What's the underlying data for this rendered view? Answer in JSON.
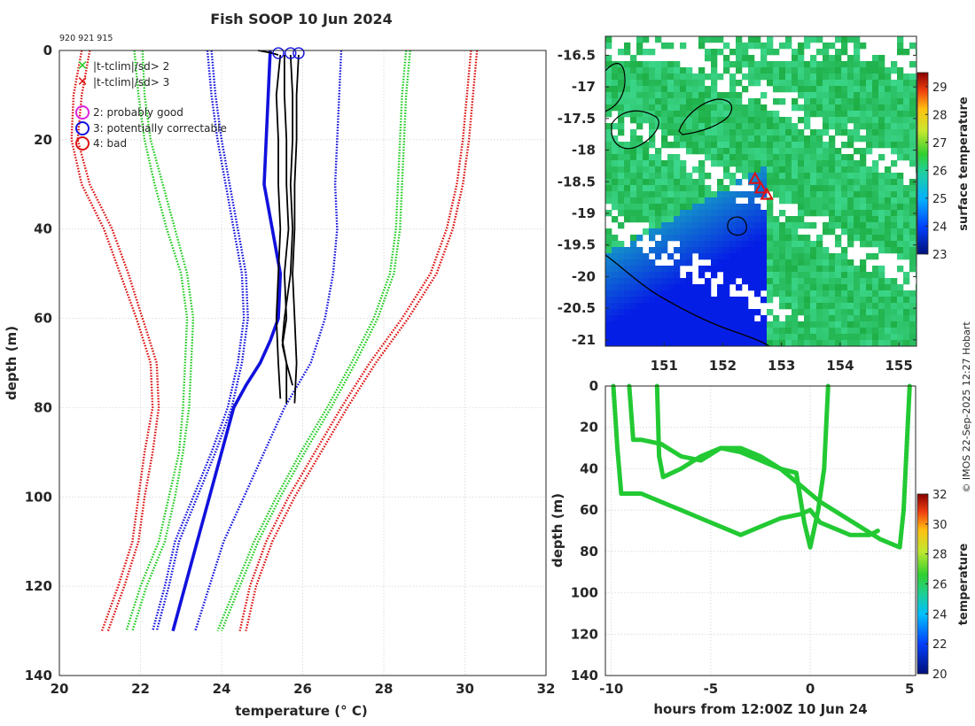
{
  "figure": {
    "title": "Fish SOOP 10 Jun 2024",
    "ids_text": "920 921 915",
    "credit": "© IMOS 22-Sep-2025 12:27 Hobart"
  },
  "chart_data": [
    {
      "type": "line",
      "panel": "profile",
      "xlabel": "temperature (° C)",
      "ylabel": "depth (m)",
      "xlim": [
        20,
        32
      ],
      "ylim": [
        140,
        0
      ],
      "xticks": [
        20,
        22,
        24,
        26,
        28,
        30,
        32
      ],
      "yticks": [
        0,
        20,
        40,
        60,
        80,
        100,
        120,
        140
      ],
      "grid": true,
      "legend": [
        {
          "label": "|t-tclim|/sd> 2",
          "marker": "x",
          "color": "#22cc22"
        },
        {
          "label": "|t-tclim|/sd> 3",
          "marker": "x",
          "color": "#dd1111"
        },
        {
          "label": "2: probably good",
          "marker": "o",
          "color": "#dd22dd"
        },
        {
          "label": "3: potentially correctable",
          "marker": "o",
          "color": "#1111dd"
        },
        {
          "label": "4: bad",
          "marker": "o",
          "color": "#dd1111"
        }
      ],
      "envelope_depth": [
        0,
        10,
        20,
        30,
        40,
        50,
        60,
        70,
        80,
        90,
        100,
        110,
        120,
        130
      ],
      "series": [
        {
          "name": "clim -3sd a",
          "color": "#dd1111",
          "style": "dotted",
          "values": [
            20.55,
            20.35,
            20.3,
            20.55,
            21.1,
            21.5,
            21.9,
            22.25,
            22.3,
            22.1,
            21.95,
            21.8,
            21.45,
            21.05
          ]
        },
        {
          "name": "clim -3sd b",
          "color": "#dd1111",
          "style": "dotted",
          "values": [
            20.75,
            20.55,
            20.45,
            20.75,
            21.3,
            21.7,
            22.05,
            22.4,
            22.45,
            22.3,
            22.1,
            21.95,
            21.6,
            21.2
          ]
        },
        {
          "name": "clim -2sd a",
          "color": "#22cc22",
          "style": "dotted",
          "values": [
            21.85,
            21.95,
            22.1,
            22.35,
            22.65,
            23.0,
            23.15,
            23.1,
            23.05,
            22.95,
            22.7,
            22.45,
            22.0,
            21.65
          ]
        },
        {
          "name": "clim -2sd b",
          "color": "#22cc22",
          "style": "dotted",
          "values": [
            22.05,
            22.1,
            22.25,
            22.55,
            22.85,
            23.15,
            23.3,
            23.25,
            23.2,
            23.05,
            22.85,
            22.6,
            22.15,
            21.8
          ]
        },
        {
          "name": "clim mean -sd",
          "color": "#1111dd",
          "style": "dotted",
          "values": [
            23.65,
            23.75,
            23.9,
            24.1,
            24.3,
            24.5,
            24.55,
            24.4,
            24.15,
            23.75,
            23.3,
            22.85,
            22.6,
            22.3
          ]
        },
        {
          "name": "clim mean -sd b",
          "color": "#1111dd",
          "style": "dotted",
          "values": [
            23.75,
            23.85,
            24.0,
            24.2,
            24.4,
            24.6,
            24.65,
            24.5,
            24.25,
            23.85,
            23.4,
            22.95,
            22.7,
            22.4
          ]
        },
        {
          "name": "clim mean +sd",
          "color": "#1111dd",
          "style": "dotted",
          "values": [
            26.95,
            26.9,
            26.85,
            26.8,
            26.85,
            26.75,
            26.55,
            26.2,
            25.55,
            25.05,
            24.55,
            24.05,
            23.7,
            23.35
          ]
        },
        {
          "name": "clim +2sd a",
          "color": "#22cc22",
          "style": "dotted",
          "values": [
            28.55,
            28.45,
            28.4,
            28.35,
            28.3,
            28.15,
            27.75,
            27.2,
            26.6,
            25.95,
            25.35,
            24.8,
            24.35,
            23.9
          ]
        },
        {
          "name": "clim +2sd b",
          "color": "#22cc22",
          "style": "dotted",
          "values": [
            28.65,
            28.55,
            28.5,
            28.45,
            28.4,
            28.25,
            27.85,
            27.3,
            26.7,
            26.05,
            25.45,
            24.9,
            24.45,
            24.0
          ]
        },
        {
          "name": "clim +3sd a",
          "color": "#dd1111",
          "style": "dotted",
          "values": [
            30.15,
            30.05,
            29.95,
            29.8,
            29.55,
            29.15,
            28.45,
            27.65,
            26.95,
            26.3,
            25.65,
            25.1,
            24.7,
            24.45
          ]
        },
        {
          "name": "clim +3sd b",
          "color": "#dd1111",
          "style": "dotted",
          "values": [
            30.3,
            30.2,
            30.1,
            29.95,
            29.7,
            29.3,
            28.6,
            27.8,
            27.1,
            26.45,
            25.8,
            25.25,
            24.85,
            24.6
          ]
        },
        {
          "name": "blue profile",
          "color": "#1111dd",
          "style": "solid-thick",
          "depth": [
            0,
            10,
            20,
            30,
            40,
            50,
            60,
            65,
            70,
            75,
            80,
            90,
            100,
            110,
            120,
            130
          ],
          "values": [
            25.2,
            25.15,
            25.1,
            25.05,
            25.25,
            25.45,
            25.4,
            25.2,
            24.95,
            24.6,
            24.3,
            24.0,
            23.7,
            23.4,
            23.1,
            22.8
          ]
        },
        {
          "name": "black profile 1",
          "color": "#000000",
          "style": "solid",
          "depth": [
            1,
            10,
            20,
            30,
            40,
            50,
            60,
            70,
            79
          ],
          "values": [
            25.9,
            25.85,
            25.85,
            25.8,
            25.8,
            25.75,
            25.8,
            25.85,
            25.8
          ]
        },
        {
          "name": "black profile 2",
          "color": "#000000",
          "style": "solid",
          "depth": [
            1,
            10,
            20,
            30,
            40,
            50,
            60,
            66,
            70,
            79
          ],
          "values": [
            25.55,
            25.55,
            25.6,
            25.6,
            25.65,
            25.55,
            25.6,
            25.5,
            25.6,
            25.6
          ]
        },
        {
          "name": "black profile 3",
          "color": "#000000",
          "style": "solid",
          "depth": [
            1,
            10,
            20,
            30,
            40,
            50,
            60,
            65,
            70,
            75
          ],
          "values": [
            25.7,
            25.75,
            25.75,
            25.7,
            25.75,
            25.7,
            25.55,
            25.5,
            25.6,
            25.75
          ]
        },
        {
          "name": "black profile 4",
          "color": "#000000",
          "style": "solid",
          "depth": [
            1,
            10,
            20,
            30,
            40,
            50,
            60,
            70,
            78
          ],
          "values": [
            25.45,
            25.35,
            25.4,
            25.4,
            25.45,
            25.4,
            25.35,
            25.4,
            25.45
          ]
        },
        {
          "name": "surface spike",
          "color": "#000000",
          "style": "solid",
          "depth": [
            0,
            0.5,
            1
          ],
          "values": [
            24.9,
            25.2,
            25.4
          ]
        }
      ],
      "flag_circles": [
        {
          "x": 25.4,
          "depth": 0.6,
          "color": "#1111dd"
        },
        {
          "x": 25.7,
          "depth": 0.6,
          "color": "#1111dd"
        },
        {
          "x": 25.9,
          "depth": 0.6,
          "color": "#1111dd"
        }
      ]
    },
    {
      "type": "heatmap",
      "panel": "map",
      "xlabel": "",
      "ylabel": "",
      "xlim": [
        150.0,
        155.3
      ],
      "ylim": [
        -21.1,
        -16.2
      ],
      "xticks": [
        151,
        152,
        153,
        154,
        155
      ],
      "yticks": [
        -16.5,
        -17,
        -17.5,
        -18,
        -18.5,
        -19,
        -19.5,
        -20,
        -20.5,
        -21
      ],
      "colorbar": {
        "label": "surface temperature",
        "min": 23,
        "max": 29.5,
        "ticks": [
          23,
          24,
          25,
          26,
          27,
          28,
          29
        ]
      },
      "profile_locations": [
        {
          "lon": 152.55,
          "lat": -18.45
        },
        {
          "lon": 152.65,
          "lat": -18.6
        },
        {
          "lon": 152.75,
          "lat": -18.7
        }
      ]
    },
    {
      "type": "scatter",
      "panel": "timeseries",
      "xlabel": "hours from 12:00Z 10 Jun 24",
      "ylabel": "depth (m)",
      "xlim": [
        -10.3,
        5.3
      ],
      "ylim": [
        140,
        0
      ],
      "xticks": [
        -10,
        -5,
        0,
        5
      ],
      "yticks": [
        0,
        20,
        40,
        60,
        80,
        100,
        120,
        140
      ],
      "colorbar": {
        "label": "temperature",
        "min": 20,
        "max": 32,
        "ticks": [
          20,
          22,
          24,
          26,
          28,
          30,
          32
        ]
      },
      "series": [
        {
          "name": "track A",
          "color": "#22c933",
          "x": [
            -9.9,
            -9.7,
            -9.5,
            -8.5,
            -7.5,
            -6.5,
            -5.5,
            -4.5,
            -3.5,
            -2.5,
            -1.5,
            -0.5,
            0.0,
            0.5,
            1.0,
            2.0,
            3.0,
            3.4
          ],
          "y": [
            0,
            30,
            52,
            52,
            56,
            60,
            64,
            68,
            72,
            68,
            64,
            62,
            60,
            66,
            68,
            72,
            72,
            70
          ]
        },
        {
          "name": "track B",
          "color": "#22c933",
          "x": [
            -9.1,
            -8.9,
            -8.5,
            -7.5,
            -6.5,
            -5.5,
            -4.5,
            -3.5,
            -2.5,
            -1.5,
            -0.7,
            -0.3,
            0.0,
            0.4,
            0.7,
            0.9
          ],
          "y": [
            0,
            26,
            26,
            28,
            34,
            36,
            30,
            32,
            36,
            40,
            42,
            66,
            78,
            60,
            40,
            0
          ]
        },
        {
          "name": "track C",
          "color": "#22c933",
          "x": [
            -7.7,
            -7.6,
            -7.4,
            -6.5,
            -5.5,
            -4.5,
            -3.5,
            -2.5,
            -1.5,
            -0.5,
            0.5,
            1.5,
            2.5,
            3.5,
            4.5,
            4.7,
            4.9,
            5.0
          ],
          "y": [
            0,
            34,
            44,
            40,
            34,
            30,
            30,
            34,
            40,
            48,
            56,
            62,
            68,
            74,
            78,
            60,
            20,
            0
          ]
        }
      ]
    }
  ]
}
